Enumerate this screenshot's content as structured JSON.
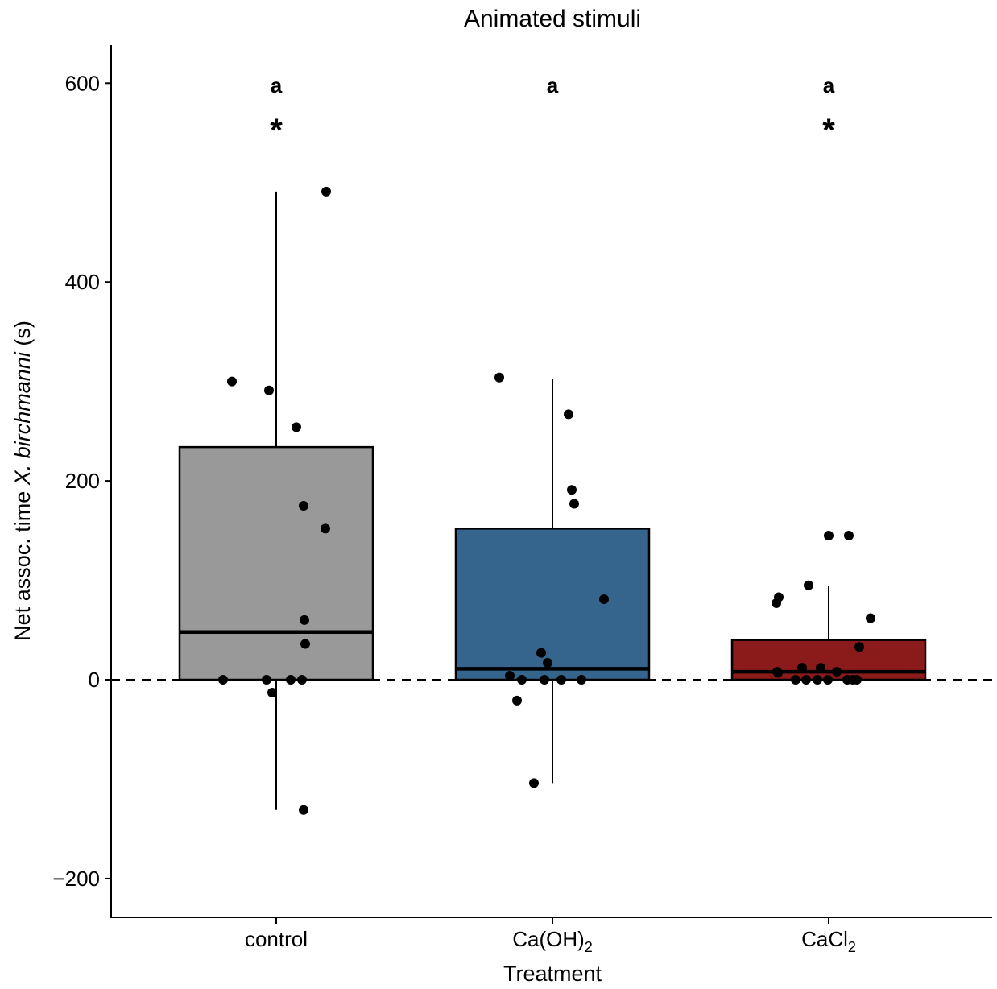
{
  "chart_data": {
    "type": "box",
    "title": "Animated stimuli",
    "xlabel": "Treatment",
    "ylabel": {
      "prefix": "Net assoc. time ",
      "species": "X. birchmanni",
      "suffix": " (s)"
    },
    "ylim": [
      -238,
      640
    ],
    "yticks": [
      -200,
      0,
      200,
      400,
      600
    ],
    "ytick_labels": [
      "−200",
      "0",
      "200",
      "400",
      "600"
    ],
    "reference_line": {
      "y": 0,
      "style": "dashed"
    },
    "grid": false,
    "categories": [
      {
        "base": "control",
        "sub": ""
      },
      {
        "base": "Ca(OH)",
        "sub": "2"
      },
      {
        "base": "CaCl",
        "sub": "2"
      }
    ],
    "boxes": [
      {
        "name": "control",
        "color": "#999999",
        "q1": 0,
        "median": 48,
        "q3": 234,
        "whisker_low": -131,
        "whisker_high": 491,
        "points": [
          491,
          300,
          291,
          254,
          175,
          152,
          60,
          36,
          0,
          0,
          0,
          0,
          -13,
          -131
        ],
        "letter": "a",
        "star": "*"
      },
      {
        "name": "Ca(OH)2",
        "color": "#35648C",
        "q1": 0,
        "median": 11,
        "q3": 152,
        "whisker_low": -104,
        "whisker_high": 303,
        "points": [
          304,
          267,
          191,
          177,
          81,
          27,
          17,
          4,
          0,
          0,
          0,
          0,
          -21,
          -104
        ],
        "letter": "a",
        "star": ""
      },
      {
        "name": "CaCl2",
        "color": "#8B1A1A",
        "q1": 0,
        "median": 8,
        "q3": 40,
        "whisker_low": 0,
        "whisker_high": 94,
        "points": [
          145,
          145,
          95,
          83,
          77,
          62,
          33,
          12,
          12,
          8,
          8,
          7,
          0,
          0,
          0,
          0,
          0,
          0,
          0
        ],
        "letter": "a",
        "star": "*"
      }
    ]
  }
}
